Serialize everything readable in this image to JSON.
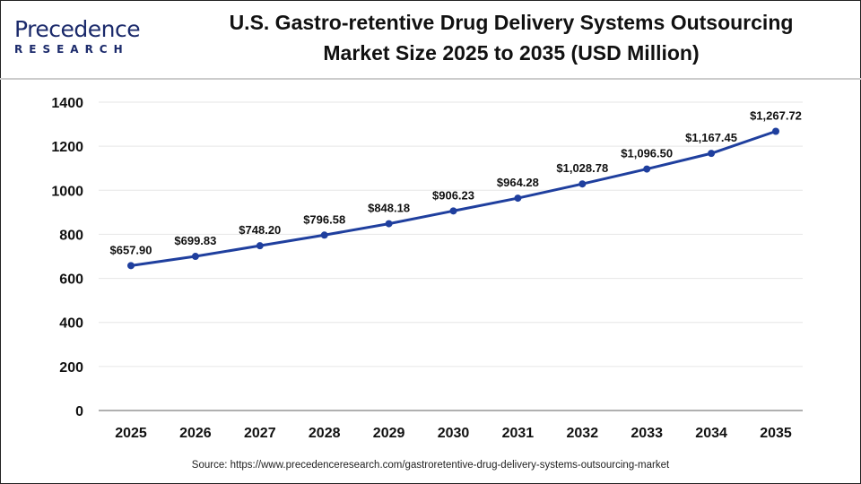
{
  "logo": {
    "text": "Precedence",
    "subtext": "RESEARCH"
  },
  "title_line1": "U.S. Gastro-retentive Drug Delivery Systems Outsourcing",
  "title_line2": "Market Size 2025 to 2035 (USD Million)",
  "source": "Source: https://www.precedenceresearch.com/gastroretentive-drug-delivery-systems-outsourcing-market",
  "colors": {
    "line": "#1f3f9e",
    "grid": "#e6e6e6",
    "axis": "#b0b0b0"
  },
  "chart_data": {
    "type": "line",
    "title": "U.S. Gastro-retentive Drug Delivery Systems Outsourcing Market Size 2025 to 2035 (USD Million)",
    "categories": [
      "2025",
      "2026",
      "2027",
      "2028",
      "2029",
      "2030",
      "2031",
      "2032",
      "2033",
      "2034",
      "2035"
    ],
    "values": [
      657.9,
      699.83,
      748.2,
      796.58,
      848.18,
      906.23,
      964.28,
      1028.78,
      1096.5,
      1167.45,
      1267.72
    ],
    "data_labels": [
      "$657.90",
      "$699.83",
      "$748.20",
      "$796.58",
      "$848.18",
      "$906.23",
      "$964.28",
      "$1,028.78",
      "$1,096.50",
      "$1,167.45",
      "$1,267.72"
    ],
    "yticks": [
      "0",
      "200",
      "400",
      "600",
      "800",
      "1000",
      "1200",
      "1400"
    ],
    "ylim": [
      0,
      1400
    ],
    "grid": true,
    "legend": "none"
  }
}
